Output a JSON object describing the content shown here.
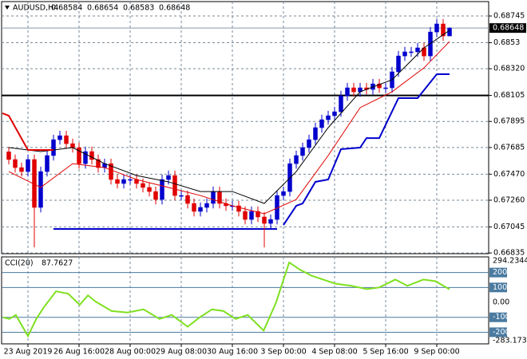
{
  "chart_data": {
    "type": "candlestick",
    "symbol": "AUDUSD,H4",
    "up_color": "#0000cd",
    "down_color": "#e00000",
    "open": [
      0.6765,
      0.67588,
      0.67523,
      0.67491,
      0.67588,
      0.67202,
      0.67491,
      0.6762,
      0.67748,
      0.6778,
      0.67716,
      0.67684,
      0.67555,
      0.67652,
      0.67588,
      0.67523,
      0.67555,
      0.67427,
      0.67395,
      0.67427,
      0.67427,
      0.67395,
      0.67363,
      0.6733,
      0.67266,
      0.67427,
      0.67459,
      0.67298,
      0.67298,
      0.67234,
      0.6717,
      0.67202,
      0.67234,
      0.6733,
      0.67234,
      0.67215,
      0.67215,
      0.6717,
      0.67105,
      0.6717,
      0.67125,
      0.67073,
      0.67105,
      0.67298,
      0.6733,
      0.67555,
      0.6762,
      0.67684,
      0.67748,
      0.67845,
      0.67909,
      0.67941,
      0.67973,
      0.68102,
      0.68166,
      0.68134,
      0.68166,
      0.68153,
      0.68198,
      0.68166,
      0.68166,
      0.68295,
      0.68423,
      0.68456,
      0.68456,
      0.68488,
      0.68423,
      0.68616,
      0.68681,
      0.68584
    ],
    "high": [
      0.6769,
      0.67628,
      0.67563,
      0.67628,
      0.67628,
      0.67531,
      0.6766,
      0.67788,
      0.6782,
      0.6782,
      0.67756,
      0.67724,
      0.67692,
      0.67692,
      0.67628,
      0.67595,
      0.67595,
      0.67467,
      0.67467,
      0.67467,
      0.67467,
      0.67435,
      0.67403,
      0.6737,
      0.67467,
      0.67499,
      0.67499,
      0.67338,
      0.67338,
      0.67274,
      0.67242,
      0.67274,
      0.6737,
      0.6737,
      0.67274,
      0.67255,
      0.67255,
      0.6721,
      0.6721,
      0.6721,
      0.67165,
      0.67145,
      0.67338,
      0.6737,
      0.67595,
      0.6766,
      0.67724,
      0.67788,
      0.67885,
      0.67949,
      0.67981,
      0.68013,
      0.68142,
      0.68206,
      0.68206,
      0.68206,
      0.68206,
      0.68238,
      0.68238,
      0.68206,
      0.68335,
      0.68463,
      0.68496,
      0.68496,
      0.68528,
      0.68528,
      0.68656,
      0.68721,
      0.68721,
      0.68654
    ],
    "low": [
      0.67548,
      0.67483,
      0.67451,
      0.67451,
      0.6688,
      0.67162,
      0.67451,
      0.6758,
      0.67708,
      0.67676,
      0.67644,
      0.67515,
      0.67515,
      0.67548,
      0.67483,
      0.67483,
      0.67387,
      0.67355,
      0.67355,
      0.67387,
      0.67355,
      0.67323,
      0.6729,
      0.67226,
      0.67226,
      0.67387,
      0.67258,
      0.67258,
      0.67194,
      0.6713,
      0.6713,
      0.67162,
      0.67194,
      0.67194,
      0.67175,
      0.67175,
      0.6713,
      0.67065,
      0.67065,
      0.67085,
      0.6688,
      0.67033,
      0.67065,
      0.67258,
      0.6729,
      0.67515,
      0.6758,
      0.67644,
      0.67708,
      0.67805,
      0.67869,
      0.67901,
      0.67933,
      0.68062,
      0.68094,
      0.68094,
      0.68113,
      0.68113,
      0.68126,
      0.68126,
      0.68126,
      0.68255,
      0.68383,
      0.68416,
      0.68416,
      0.68383,
      0.68383,
      0.68576,
      0.68544,
      0.68583
    ],
    "close": [
      0.67588,
      0.67523,
      0.67491,
      0.67588,
      0.67202,
      0.67491,
      0.6762,
      0.67748,
      0.6778,
      0.67716,
      0.67684,
      0.67555,
      0.67652,
      0.67588,
      0.67523,
      0.67555,
      0.67427,
      0.67395,
      0.67427,
      0.67427,
      0.67395,
      0.67363,
      0.6733,
      0.67266,
      0.67427,
      0.67459,
      0.67298,
      0.67298,
      0.67234,
      0.6717,
      0.67202,
      0.67234,
      0.6733,
      0.67234,
      0.67215,
      0.67215,
      0.6717,
      0.67105,
      0.6717,
      0.67125,
      0.67073,
      0.67105,
      0.67298,
      0.6733,
      0.67555,
      0.6762,
      0.67684,
      0.67748,
      0.67845,
      0.67909,
      0.67941,
      0.67973,
      0.68102,
      0.68166,
      0.68134,
      0.68166,
      0.68153,
      0.68198,
      0.68166,
      0.68166,
      0.68295,
      0.68423,
      0.68456,
      0.68456,
      0.68488,
      0.68423,
      0.68616,
      0.68681,
      0.68584,
      0.68648
    ],
    "lines": [
      {
        "color": "#000000",
        "width": 1,
        "x": [
          0,
          5,
          10,
          15,
          20,
          25,
          30,
          35,
          40,
          45,
          50,
          55,
          60,
          65,
          69
        ],
        "values": [
          0.67684,
          0.67652,
          0.67684,
          0.67555,
          0.67459,
          0.67408,
          0.6733,
          0.6733,
          0.67234,
          0.67491,
          0.67845,
          0.68134,
          0.68231,
          0.68488,
          0.68629
        ]
      },
      {
        "color": "#e00000",
        "width": 1,
        "x": [
          0,
          5,
          10,
          15,
          20,
          25,
          30,
          35,
          40,
          45,
          50,
          55,
          60,
          65,
          69
        ],
        "values": [
          0.67491,
          0.67363,
          0.67555,
          0.67523,
          0.67427,
          0.67363,
          0.67298,
          0.67215,
          0.67151,
          0.67266,
          0.6762,
          0.68006,
          0.68134,
          0.68327,
          0.68539
        ]
      },
      {
        "color": "#e00000",
        "width": 2,
        "x": [
          -1,
          0,
          3,
          7
        ],
        "values": [
          0.67961,
          0.67941,
          0.67665,
          0.67665
        ]
      },
      {
        "color": "#0000cd",
        "width": 2,
        "x": [
          43,
          45,
          46,
          48,
          50,
          52,
          55,
          56,
          58,
          61,
          64,
          67,
          69
        ],
        "values": [
          0.6706,
          0.67215,
          0.67234,
          0.67408,
          0.67427,
          0.67671,
          0.67684,
          0.67761,
          0.67761,
          0.68083,
          0.68083,
          0.68276,
          0.68276
        ]
      }
    ],
    "hlines": [
      {
        "value": 0.68105,
        "color": "#000000"
      },
      {
        "value": 0.67028,
        "color": "#0000cd",
        "x": [
          7,
          42
        ]
      }
    ],
    "ylim": [
      0.66829,
      0.68861
    ],
    "yticks": [
      0.68745,
      0.6853,
      {
        "value": 0.6832,
        "label": "0.68320"
      },
      0.68105,
      0.67895,
      0.67685,
      {
        "value": 0.6747,
        "label": "0.67470"
      },
      {
        "value": 0.6726,
        "label": "0.67260"
      },
      0.67045,
      0.66835
    ],
    "xticks": [
      {
        "value": 3,
        "label": "23 Aug 2019"
      },
      {
        "value": 11,
        "label": "26 Aug 16:00"
      },
      {
        "value": 19,
        "label": "28 Aug 00:00"
      },
      {
        "value": 27,
        "label": "29 Aug 08:00"
      },
      {
        "value": 35,
        "label": "30 Aug 16:00"
      },
      {
        "value": 43,
        "label": "3 Sep 00:00"
      },
      {
        "value": 51,
        "label": "4 Sep 08:00"
      },
      {
        "value": 59,
        "label": "5 Sep 16:00"
      },
      {
        "value": 67,
        "label": "9 Sep 00:00"
      }
    ],
    "grid": true,
    "cci": {
      "label": "CCI(20)",
      "color": "#7fe020",
      "x": [
        -0.9,
        0.1,
        1.1,
        3,
        4.3,
        5.5,
        7.4,
        9.3,
        11.1,
        12.4,
        13.6,
        16.1,
        18.6,
        21.1,
        23.6,
        25.5,
        28,
        29.9,
        31.8,
        33.6,
        35.5,
        37.4,
        39.9,
        41.8,
        43.9,
        45.5,
        47.4,
        51.1,
        53.6,
        56.1,
        58,
        60.5,
        62.4,
        64.9,
        66.8,
        69
      ],
      "values": [
        -100,
        -111,
        -84,
        -226,
        -111,
        -32,
        74,
        58,
        -16,
        47,
        5,
        -58,
        -68,
        -47,
        -111,
        -84,
        -163,
        -100,
        -47,
        -58,
        -111,
        -84,
        -189,
        -5,
        268,
        221,
        179,
        126,
        111,
        89,
        100,
        153,
        111,
        153,
        142,
        87.7627
      ],
      "ylim": [
        -283.1739,
        294.2344
      ],
      "yticks": [
        294.2344,
        200,
        100,
        {
          "value": 0,
          "label": "0.00"
        },
        -100,
        -200,
        -283.1739
      ],
      "levels": [
        200,
        100,
        -100,
        -200
      ]
    }
  }
}
